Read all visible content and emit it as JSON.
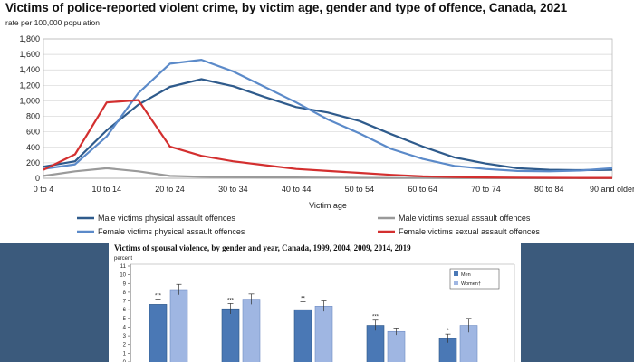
{
  "chart_data": [
    {
      "type": "line",
      "title": "Victims of police-reported violent crime, by victim age, gender and type of offence, Canada, 2021",
      "ylabel": "rate per 100,000 population",
      "xlabel": "Victim age",
      "ylim": [
        0,
        1800
      ],
      "yticks": [
        "0",
        "200",
        "400",
        "600",
        "800",
        "1,000",
        "1,200",
        "1,400",
        "1,600",
        "1,800"
      ],
      "ytick_values": [
        0,
        200,
        400,
        600,
        800,
        1000,
        1200,
        1400,
        1600,
        1800
      ],
      "x_labels": [
        "0 to 4",
        "10 to 14",
        "20 to 24",
        "30 to 34",
        "40 to 44",
        "50 to 54",
        "60 to 64",
        "70 to 74",
        "80 to 84",
        "90 and older"
      ],
      "x_ages": [
        0,
        5,
        10,
        15,
        20,
        25,
        30,
        35,
        40,
        45,
        50,
        55,
        60,
        65,
        70,
        75,
        80,
        85,
        90
      ],
      "series": [
        {
          "name": "Male victims physical assault offences",
          "color": "#2f5b8c",
          "values": [
            150,
            220,
            620,
            950,
            1180,
            1280,
            1190,
            1050,
            920,
            850,
            740,
            570,
            410,
            270,
            190,
            130,
            110,
            105,
            110
          ]
        },
        {
          "name": "Male victims sexual assault offences",
          "color": "#9a9a9a",
          "values": [
            30,
            90,
            130,
            90,
            30,
            20,
            15,
            12,
            10,
            8,
            6,
            4,
            3,
            2,
            2,
            1,
            1,
            1,
            1
          ]
        },
        {
          "name": "Female victims physical assault offences",
          "color": "#5b8ac9",
          "values": [
            120,
            180,
            540,
            1100,
            1480,
            1530,
            1380,
            1180,
            980,
            760,
            580,
            380,
            250,
            160,
            120,
            95,
            90,
            100,
            130
          ]
        },
        {
          "name": "Female victims sexual assault offences",
          "color": "#d32f2f",
          "values": [
            110,
            310,
            980,
            1010,
            410,
            290,
            220,
            170,
            120,
            95,
            70,
            45,
            25,
            15,
            10,
            8,
            6,
            5,
            5
          ]
        }
      ]
    },
    {
      "type": "bar",
      "title": "Victims of spousal violence, by gender and year, Canada, 1999, 2004, 2009, 2014, 2019",
      "ylabel": "percent",
      "ylim": [
        0,
        11
      ],
      "yticks": [
        "0",
        "1",
        "2",
        "3",
        "4",
        "5",
        "6",
        "7",
        "8",
        "9",
        "10",
        "11"
      ],
      "series": [
        {
          "name": "Men",
          "color": "#4a78b5",
          "values": [
            6.6,
            6.1,
            6.0,
            4.2,
            2.7
          ],
          "errors": [
            0.6,
            0.6,
            0.9,
            0.6,
            0.5
          ],
          "marks": [
            "***",
            "***",
            "**",
            "***",
            "*"
          ]
        },
        {
          "name": "Women†",
          "color": "#9fb6e2",
          "values": [
            8.3,
            7.2,
            6.4,
            3.5,
            4.2
          ],
          "errors": [
            0.6,
            0.6,
            0.6,
            0.4,
            0.8
          ],
          "marks": [
            "",
            "",
            "",
            "",
            ""
          ]
        }
      ]
    }
  ]
}
